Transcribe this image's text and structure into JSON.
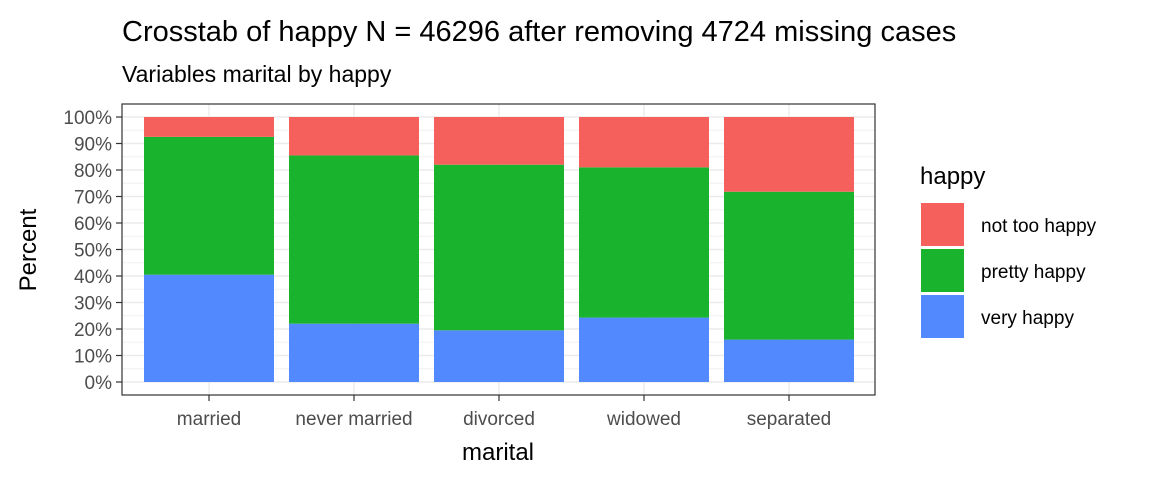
{
  "chart_data": {
    "type": "bar",
    "stacked": true,
    "percent": true,
    "title": "Crosstab of happy N = 46296 after removing 4724 missing cases",
    "subtitle": "Variables marital by happy",
    "xlabel": "marital",
    "ylabel": "Percent",
    "ylim": [
      0,
      100
    ],
    "yticks": [
      "0%",
      "10%",
      "20%",
      "30%",
      "40%",
      "50%",
      "60%",
      "70%",
      "80%",
      "90%",
      "100%"
    ],
    "categories": [
      "married",
      "never married",
      "divorced",
      "widowed",
      "separated"
    ],
    "series": [
      {
        "name": "very happy",
        "color": "#5289ff",
        "values": [
          40.5,
          22.0,
          19.5,
          24.3,
          16.0
        ]
      },
      {
        "name": "pretty happy",
        "color": "#1ab32e",
        "values": [
          52.0,
          63.5,
          62.5,
          56.7,
          55.8
        ]
      },
      {
        "name": "not too happy",
        "color": "#f5605c",
        "values": [
          7.5,
          14.5,
          18.0,
          19.0,
          28.2
        ]
      }
    ],
    "legend": {
      "title": "happy",
      "position": "right",
      "order": [
        "not too happy",
        "pretty happy",
        "very happy"
      ]
    },
    "grid": true,
    "theme": "bw"
  }
}
